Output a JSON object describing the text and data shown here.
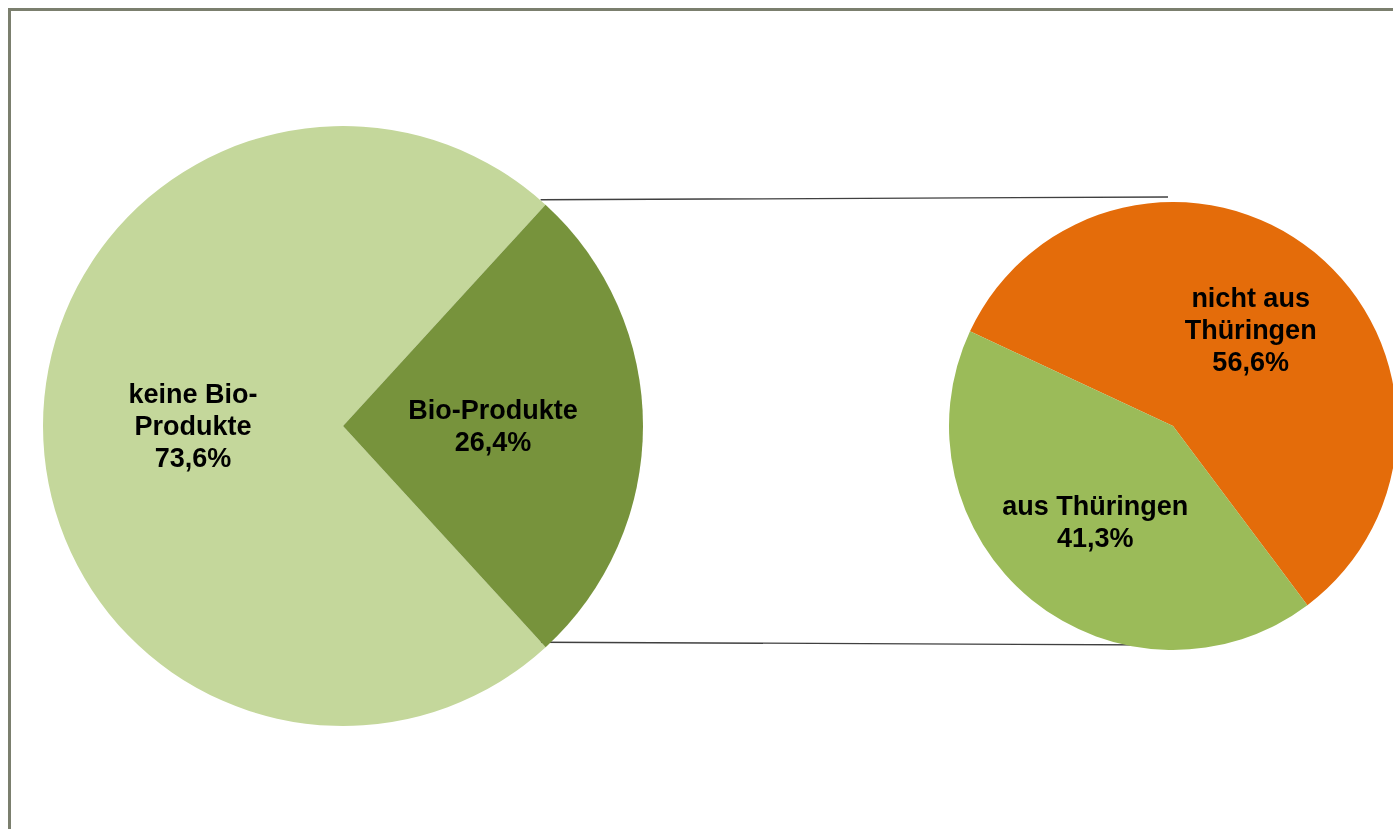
{
  "chart_data": [
    {
      "type": "pie",
      "categories": [
        "keine Bio-Produkte",
        "Bio-Produkte"
      ],
      "values": [
        73.6,
        26.4
      ],
      "colors": [
        "#c4d79b",
        "#77933c"
      ],
      "value_labels": [
        "73,6%",
        "26,4%"
      ]
    },
    {
      "type": "pie",
      "categories": [
        "nicht aus Thüringen",
        "aus Thüringen"
      ],
      "values": [
        56.6,
        41.3
      ],
      "colors": [
        "#e46c0a",
        "#9bbb59"
      ],
      "value_labels": [
        "56,6%",
        "41,3%"
      ]
    }
  ]
}
